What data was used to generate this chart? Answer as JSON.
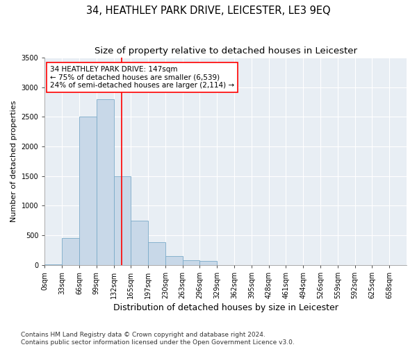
{
  "title": "34, HEATHLEY PARK DRIVE, LEICESTER, LE3 9EQ",
  "subtitle": "Size of property relative to detached houses in Leicester",
  "xlabel": "Distribution of detached houses by size in Leicester",
  "ylabel": "Number of detached properties",
  "bar_values": [
    5,
    450,
    2500,
    2800,
    1500,
    750,
    380,
    150,
    80,
    70,
    0,
    0,
    0,
    0,
    0,
    0,
    0,
    0,
    0,
    0,
    0
  ],
  "bar_labels": [
    "0sqm",
    "33sqm",
    "66sqm",
    "99sqm",
    "132sqm",
    "165sqm",
    "197sqm",
    "230sqm",
    "263sqm",
    "296sqm",
    "329sqm",
    "362sqm",
    "395sqm",
    "428sqm",
    "461sqm",
    "494sqm",
    "526sqm",
    "559sqm",
    "592sqm",
    "625sqm",
    "658sqm"
  ],
  "bar_color": "#c8d8e8",
  "bar_edgecolor": "#7aaac8",
  "vline_x": 4.45,
  "vline_color": "red",
  "annotation_text": "34 HEATHLEY PARK DRIVE: 147sqm\n← 75% of detached houses are smaller (6,539)\n24% of semi-detached houses are larger (2,114) →",
  "annotation_box_color": "white",
  "annotation_box_edgecolor": "red",
  "ylim": [
    0,
    3500
  ],
  "yticks": [
    0,
    500,
    1000,
    1500,
    2000,
    2500,
    3000,
    3500
  ],
  "background_color": "#e8eef4",
  "footer_line1": "Contains HM Land Registry data © Crown copyright and database right 2024.",
  "footer_line2": "Contains public sector information licensed under the Open Government Licence v3.0.",
  "title_fontsize": 10.5,
  "subtitle_fontsize": 9.5,
  "xlabel_fontsize": 9,
  "ylabel_fontsize": 8,
  "tick_fontsize": 7,
  "annotation_fontsize": 7.5,
  "footer_fontsize": 6.5
}
